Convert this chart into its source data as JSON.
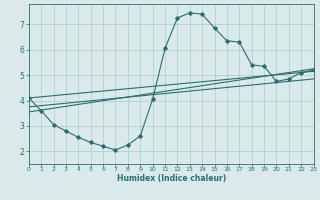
{
  "xlabel": "Humidex (Indice chaleur)",
  "bg_color": "#daeaea",
  "line_color": "#2a6e6e",
  "grid_color": "#aacccc",
  "xlim": [
    0,
    23
  ],
  "ylim": [
    1.5,
    7.8
  ],
  "xticks": [
    0,
    1,
    2,
    3,
    4,
    5,
    6,
    7,
    8,
    9,
    10,
    11,
    12,
    13,
    14,
    15,
    16,
    17,
    18,
    19,
    20,
    21,
    22,
    23
  ],
  "yticks": [
    2,
    3,
    4,
    5,
    6,
    7
  ],
  "series": [
    {
      "x": [
        0,
        1,
        2,
        3,
        4,
        5,
        6,
        7,
        8,
        9,
        10,
        11,
        12,
        13,
        14,
        15,
        16,
        17,
        18,
        19,
        20,
        21,
        22,
        23
      ],
      "y": [
        4.1,
        3.6,
        3.05,
        2.8,
        2.55,
        2.35,
        2.2,
        2.05,
        2.25,
        2.6,
        4.05,
        6.05,
        7.25,
        7.45,
        7.4,
        6.85,
        6.35,
        6.3,
        5.4,
        5.35,
        4.75,
        4.85,
        5.1,
        5.2
      ],
      "has_markers": true
    },
    {
      "x": [
        0,
        23
      ],
      "y": [
        4.1,
        5.15
      ],
      "has_markers": false
    },
    {
      "x": [
        0,
        23
      ],
      "y": [
        3.75,
        4.85
      ],
      "has_markers": false
    },
    {
      "x": [
        0,
        23
      ],
      "y": [
        3.55,
        5.25
      ],
      "has_markers": false
    }
  ]
}
